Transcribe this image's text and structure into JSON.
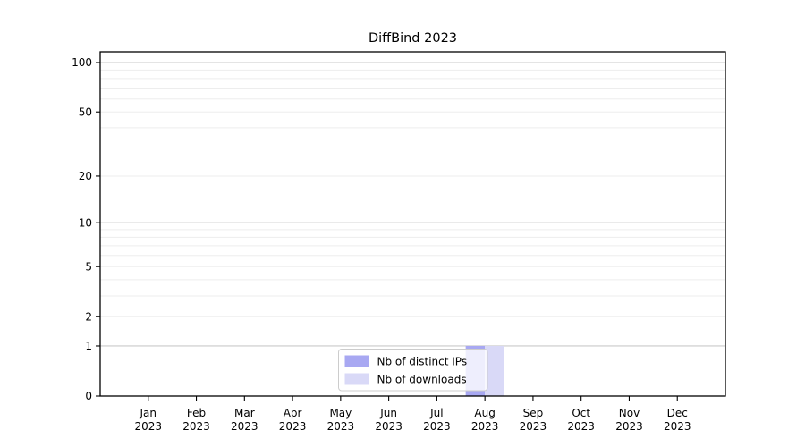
{
  "figure": {
    "title": "DiffBind 2023",
    "background": "#ffffff"
  },
  "chart_data": {
    "type": "bar",
    "title": "DiffBind 2023",
    "x_months": [
      "Jan",
      "Feb",
      "Mar",
      "Apr",
      "May",
      "Jun",
      "Jul",
      "Aug",
      "Sep",
      "Oct",
      "Nov",
      "Dec"
    ],
    "x_year": "2023",
    "series": [
      {
        "name": "Nb of distinct IPs",
        "color": "#a8a8f2",
        "values": [
          0,
          0,
          0,
          0,
          0,
          0,
          0,
          1,
          0,
          0,
          0,
          0
        ]
      },
      {
        "name": "Nb of downloads",
        "color": "#d9d9f7",
        "values": [
          0,
          0,
          0,
          0,
          0,
          0,
          0,
          1,
          0,
          0,
          0,
          0
        ]
      }
    ],
    "y_scale": "log1p",
    "ylim": [
      0,
      116
    ],
    "y_ticks": [
      0,
      1,
      2,
      5,
      10,
      20,
      50,
      100
    ],
    "y_major_grid": [
      1,
      10,
      100
    ],
    "y_minor_grid": [
      2,
      3,
      4,
      5,
      6,
      7,
      8,
      9,
      20,
      30,
      40,
      50,
      60,
      70,
      80,
      90
    ],
    "grid": "horizontal",
    "legend": {
      "position": "lower center",
      "labels": [
        "Nb of distinct IPs",
        "Nb of downloads"
      ]
    },
    "colors": {
      "spine": "#000000",
      "major_grid": "#c9c9c9",
      "minor_grid": "#ededed",
      "tick_label": "#000000",
      "legend_border": "#cccccc",
      "legend_bg_rgba": "255,255,255,0.8"
    }
  }
}
